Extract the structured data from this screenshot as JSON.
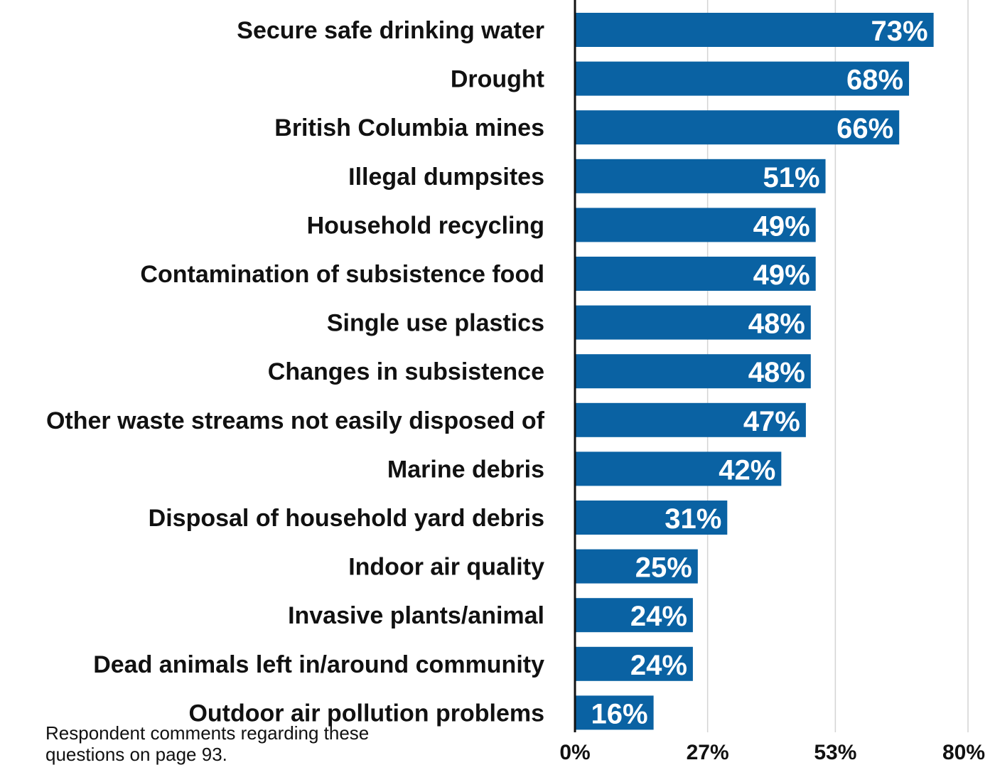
{
  "chart_data": {
    "type": "bar",
    "orientation": "horizontal",
    "title": "",
    "xlabel": "",
    "ylabel": "",
    "xlim": [
      0,
      80
    ],
    "ticks": [
      0,
      27,
      53,
      80
    ],
    "tick_labels": [
      "0%",
      "27%",
      "53%",
      "80%"
    ],
    "grid": true,
    "categories": [
      "Secure safe drinking water",
      "Drought",
      "British Columbia mines",
      "Illegal dumpsites",
      "Household recycling",
      "Contamination of subsistence food",
      "Single use plastics",
      "Changes in subsistence",
      "Other waste streams not easily disposed of",
      "Marine debris",
      "Disposal of household yard debris",
      "Indoor air quality",
      "Invasive plants/animal",
      "Dead animals left in/around community",
      "Outdoor air pollution problems"
    ],
    "values": [
      73,
      68,
      66,
      51,
      49,
      49,
      48,
      48,
      47,
      42,
      31,
      25,
      24,
      24,
      16
    ],
    "value_labels": [
      "73%",
      "68%",
      "66%",
      "51%",
      "49%",
      "49%",
      "48%",
      "48%",
      "47%",
      "42%",
      "31%",
      "25%",
      "24%",
      "24%",
      "16%"
    ],
    "bar_color": "#0a62a3",
    "value_label_color": "#ffffff",
    "gridline_color": "#d4d4d4"
  },
  "footnote": "Respondent comments regarding these questions on page 93."
}
